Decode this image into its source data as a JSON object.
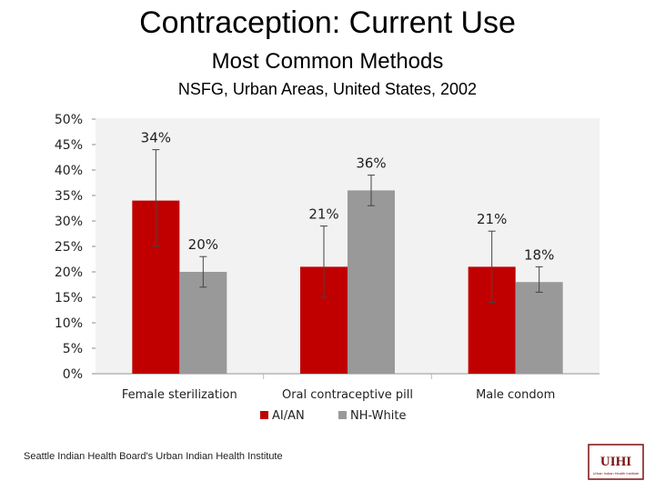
{
  "slide": {
    "title": "Contraception: Current Use",
    "subtitle": "Most Common Methods",
    "subtitle2": "NSFG, Urban Areas, United States, 2002",
    "footer": "Seattle Indian Health Board's Urban Indian Health Institute",
    "logo_text": "UIHI",
    "logo_subtext": "Urban Indian Health Institute"
  },
  "chart_data": {
    "type": "bar",
    "categories": [
      "Female sterilization",
      "Oral contraceptive pill",
      "Male condom"
    ],
    "series": [
      {
        "name": "AI/AN",
        "values": [
          34,
          21,
          21
        ],
        "labels": [
          "34%",
          "21%",
          "21%"
        ],
        "error": [
          [
            25,
            44
          ],
          [
            15,
            29
          ],
          [
            14,
            28
          ]
        ],
        "color": "#c00000"
      },
      {
        "name": "NH-White",
        "values": [
          20,
          36,
          18
        ],
        "labels": [
          "20%",
          "36%",
          "18%"
        ],
        "error": [
          [
            17,
            23
          ],
          [
            33,
            39
          ],
          [
            16,
            21
          ]
        ],
        "color": "#999999"
      }
    ],
    "yticks": [
      "0%",
      "5%",
      "10%",
      "15%",
      "20%",
      "25%",
      "30%",
      "35%",
      "40%",
      "45%",
      "50%"
    ],
    "ylim": [
      0,
      50
    ],
    "legend_position": "bottom"
  }
}
